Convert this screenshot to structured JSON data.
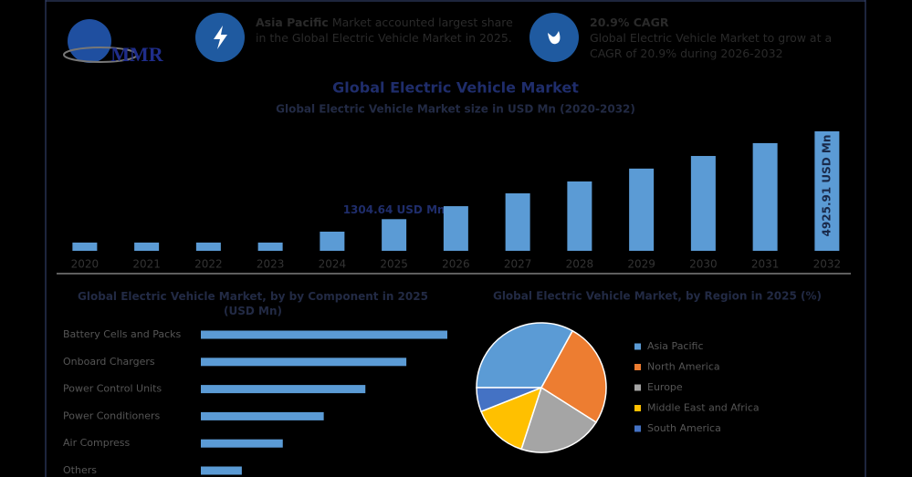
{
  "header": {
    "logo": "MMR",
    "box1": {
      "bold": "Asia Pacific",
      "text": "Market accounted largest share in the Global Electric Vehicle Market in 2025."
    },
    "box2": {
      "bold": "20.9% CAGR",
      "text": "Global Electric Vehicle Market to grow at a CAGR of 20.9% during 2026-2032"
    }
  },
  "chart_data": [
    {
      "type": "bar",
      "title": "Global Electric Vehicle Market",
      "subtitle": "Global Electric Vehicle Market size in USD Mn (2020-2032)",
      "categories": [
        "2020",
        "2021",
        "2022",
        "2023",
        "2024",
        "2025",
        "2026",
        "2027",
        "2028",
        "2029",
        "2030",
        "2031",
        "2032"
      ],
      "values": [
        340,
        340,
        340,
        340,
        790,
        1304.64,
        1840,
        2370,
        2860,
        3390,
        3910,
        4440,
        4925.91
      ],
      "value_labels": [
        null,
        null,
        null,
        null,
        null,
        "1304.64 USD Mn",
        null,
        null,
        null,
        null,
        null,
        null,
        "4925.91 USD Mn"
      ],
      "color": "#5b9bd5"
    },
    {
      "type": "barh",
      "title": "Global Electric Vehicle Market, by by Component in 2025 (USD Mn)",
      "categories": [
        "Battery Cells and Packs",
        "Onboard Chargers",
        "Power Control Units",
        "Power Conditioners",
        "Air Compress",
        "Others"
      ],
      "values": [
        373,
        311,
        249,
        186,
        124,
        62
      ],
      "color": "#5b9bd5"
    },
    {
      "type": "pie",
      "title": "Global Electric Vehicle Market, by Region in 2025 (%)",
      "categories": [
        "Asia Pacific",
        "North America",
        "Europe",
        "Middle East and Africa",
        "South America"
      ],
      "values": [
        33,
        26,
        21,
        14,
        6
      ],
      "colors": [
        "#5b9bd5",
        "#ed7d31",
        "#a5a5a5",
        "#ffc000",
        "#4472c4"
      ]
    }
  ]
}
